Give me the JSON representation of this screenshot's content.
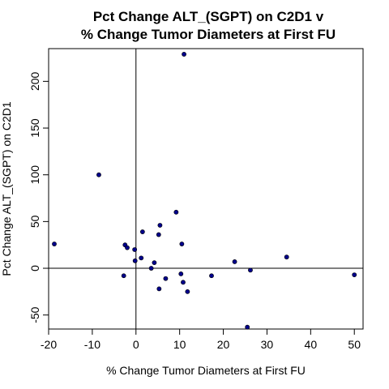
{
  "chart_data": {
    "type": "scatter",
    "title": [
      "Pct Change ALT_(SGPT) on C2D1 v",
      "% Change Tumor Diameters at First FU"
    ],
    "xlabel": "% Change Tumor Diameters at First FU",
    "ylabel": "Pct Change ALT_(SGPT) on C2D1",
    "xlim": [
      -20,
      52
    ],
    "ylim": [
      -65,
      235
    ],
    "xticks": [
      -20,
      -10,
      0,
      10,
      20,
      30,
      40,
      50
    ],
    "yticks": [
      -50,
      0,
      50,
      100,
      150,
      200
    ],
    "xticklabels": [
      "-20",
      "-10",
      "0",
      "10",
      "20",
      "30",
      "40",
      "50"
    ],
    "yticklabels": [
      "-50",
      "0",
      "50",
      "100",
      "150",
      "200"
    ],
    "reference_lines": {
      "x": 0,
      "y": 0
    },
    "grid": false,
    "point_color": "#00008B",
    "points": [
      {
        "x": 11.0,
        "y": 229
      },
      {
        "x": -8.5,
        "y": 100
      },
      {
        "x": 9.2,
        "y": 60
      },
      {
        "x": 5.5,
        "y": 46
      },
      {
        "x": 1.5,
        "y": 39
      },
      {
        "x": 5.2,
        "y": 36
      },
      {
        "x": -18.7,
        "y": 26
      },
      {
        "x": 10.5,
        "y": 26
      },
      {
        "x": -2.5,
        "y": 25
      },
      {
        "x": -2.0,
        "y": 22
      },
      {
        "x": -0.3,
        "y": 20
      },
      {
        "x": 34.5,
        "y": 12
      },
      {
        "x": 1.2,
        "y": 11
      },
      {
        "x": -0.2,
        "y": 8
      },
      {
        "x": 22.6,
        "y": 7
      },
      {
        "x": 4.2,
        "y": 6
      },
      {
        "x": 3.5,
        "y": 0
      },
      {
        "x": 26.2,
        "y": -2
      },
      {
        "x": 10.3,
        "y": -6
      },
      {
        "x": 50.0,
        "y": -7
      },
      {
        "x": -2.8,
        "y": -8
      },
      {
        "x": 17.3,
        "y": -8
      },
      {
        "x": 6.8,
        "y": -11
      },
      {
        "x": 10.8,
        "y": -15
      },
      {
        "x": 5.3,
        "y": -22
      },
      {
        "x": 11.8,
        "y": -25
      },
      {
        "x": 25.5,
        "y": -63
      }
    ]
  }
}
